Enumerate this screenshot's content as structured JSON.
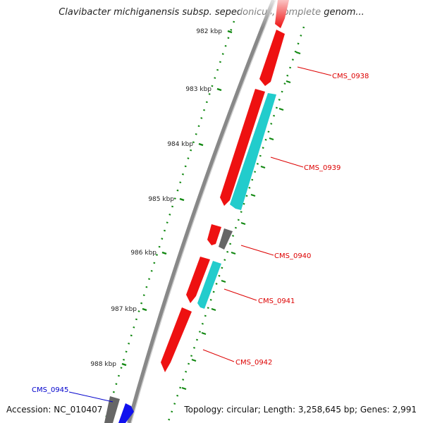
{
  "title": "Clavibacter michiganensis subsp. sepedonicus, complete genom...",
  "footer": {
    "accession": "Accession: NC_010407",
    "topology": "Topology: circular; Length: 3,258,645 bp; Genes: 2,991"
  },
  "colors": {
    "forward_gene": "#ee1111",
    "reverse_gene": "#22cccc",
    "grey_gene": "#666666",
    "blue_gene": "#1111ee",
    "backbone": "#888888",
    "tick": "#118811",
    "label_red": "#dd0000",
    "label_blue": "#0000cc"
  },
  "ticks": [
    "982 kbp",
    "983 kbp",
    "984 kbp",
    "985 kbp",
    "986 kbp",
    "987 kbp",
    "988 kbp"
  ],
  "gene_labels": [
    {
      "id": "CMS_0938",
      "color": "red"
    },
    {
      "id": "CMS_0939",
      "color": "red"
    },
    {
      "id": "CMS_0940",
      "color": "red"
    },
    {
      "id": "CMS_0941",
      "color": "red"
    },
    {
      "id": "CMS_0942",
      "color": "red"
    },
    {
      "id": "CMS_0945",
      "color": "blue"
    }
  ]
}
